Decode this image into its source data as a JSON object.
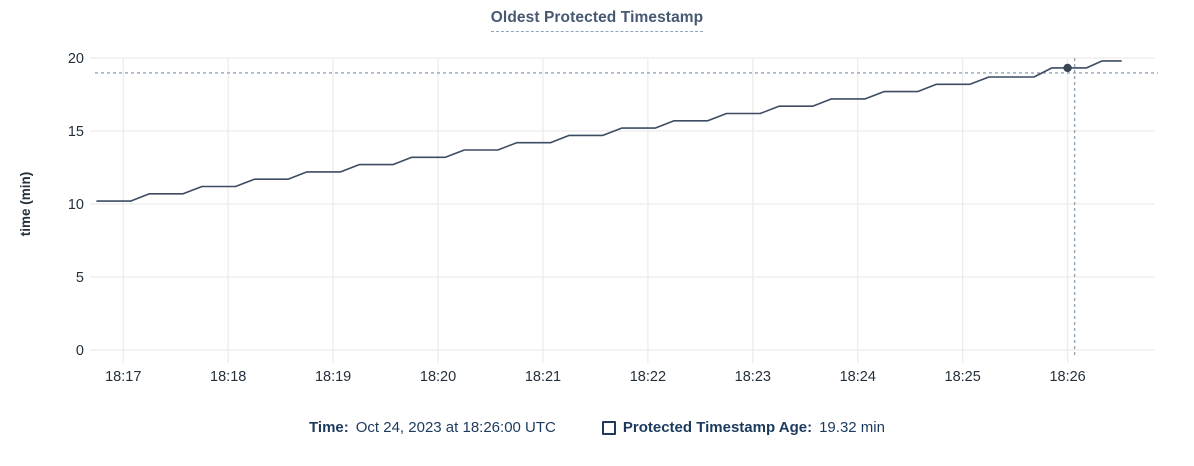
{
  "header": {
    "title": "Oldest Protected Timestamp"
  },
  "chart_data": {
    "type": "line",
    "title": "Oldest Protected Timestamp",
    "xlabel": "",
    "ylabel": "time (min)",
    "ylim": [
      0,
      20
    ],
    "yticks": [
      0,
      5,
      10,
      15,
      20
    ],
    "xtick_labels": [
      "18:17",
      "18:18",
      "18:19",
      "18:20",
      "18:21",
      "18:22",
      "18:23",
      "18:24",
      "18:25",
      "18:26"
    ],
    "xtick_t": [
      0,
      1,
      2,
      3,
      4,
      5,
      6,
      7,
      8,
      9
    ],
    "xlim": [
      -0.317,
      9.833
    ],
    "grid": true,
    "legend_position": "bottom",
    "series": [
      {
        "name": "Protected Timestamp Age",
        "unit": "min",
        "points": [
          [
            -0.25,
            10.2
          ],
          [
            0.07,
            10.2
          ],
          [
            0.25,
            10.7
          ],
          [
            0.57,
            10.7
          ],
          [
            0.75,
            11.2
          ],
          [
            1.07,
            11.2
          ],
          [
            1.25,
            11.7
          ],
          [
            1.57,
            11.7
          ],
          [
            1.75,
            12.2
          ],
          [
            2.07,
            12.2
          ],
          [
            2.25,
            12.7
          ],
          [
            2.57,
            12.7
          ],
          [
            2.75,
            13.2
          ],
          [
            3.07,
            13.2
          ],
          [
            3.25,
            13.7
          ],
          [
            3.57,
            13.7
          ],
          [
            3.75,
            14.2
          ],
          [
            4.07,
            14.2
          ],
          [
            4.25,
            14.7
          ],
          [
            4.57,
            14.7
          ],
          [
            4.75,
            15.2
          ],
          [
            5.07,
            15.2
          ],
          [
            5.25,
            15.7
          ],
          [
            5.57,
            15.7
          ],
          [
            5.75,
            16.2
          ],
          [
            6.07,
            16.2
          ],
          [
            6.25,
            16.7
          ],
          [
            6.57,
            16.7
          ],
          [
            6.75,
            17.2
          ],
          [
            7.07,
            17.2
          ],
          [
            7.25,
            17.7
          ],
          [
            7.57,
            17.7
          ],
          [
            7.75,
            18.2
          ],
          [
            8.07,
            18.2
          ],
          [
            8.25,
            18.7
          ],
          [
            8.68,
            18.7
          ],
          [
            8.85,
            19.32
          ],
          [
            9.18,
            19.32
          ],
          [
            9.33,
            19.8
          ],
          [
            9.51,
            19.8
          ]
        ]
      }
    ],
    "hover": {
      "t": 9,
      "time_label": "18:26",
      "value": 19.32
    }
  },
  "colors": {
    "title": "#475872",
    "title_underline": "#93a3bd",
    "tick_text": "#24303c",
    "grid": "#ececec",
    "line": "#3d4c63",
    "dot": "#394455",
    "crosshair": "#92a6b8",
    "legend_text": "#1c3a5e"
  },
  "footer": {
    "time_label": "Time:",
    "time_value": "Oct 24, 2023 at 18:26:00 UTC",
    "series_label": "Protected Timestamp Age:",
    "series_value": "19.32 min"
  }
}
